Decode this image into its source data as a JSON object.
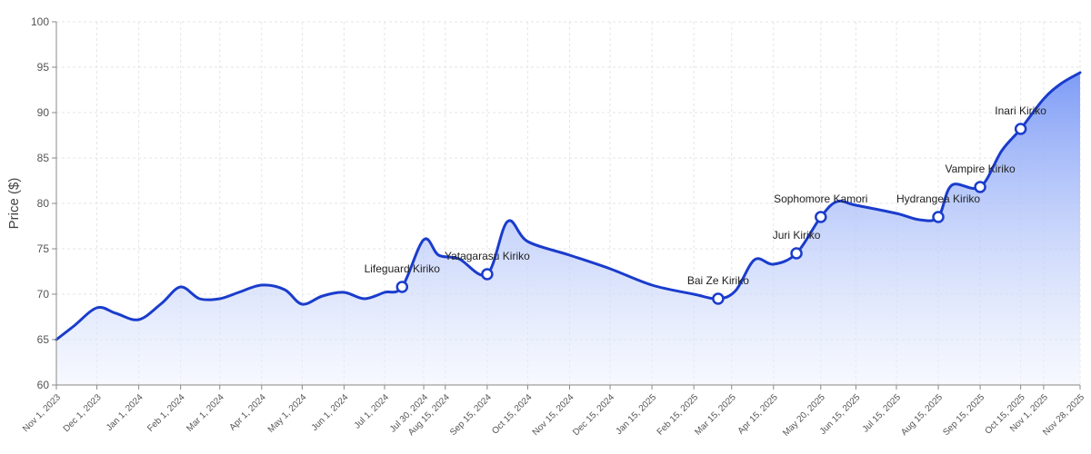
{
  "chart_data": {
    "type": "area",
    "title": "",
    "xlabel": "",
    "ylabel": "Price ($)",
    "ylim": [
      60,
      100
    ],
    "yticks": [
      60,
      65,
      70,
      75,
      80,
      85,
      90,
      95,
      100
    ],
    "grid": true,
    "x_tick_labels": [
      {
        "date": "2023-11-01",
        "label": "Nov 1, 2023"
      },
      {
        "date": "2023-12-01",
        "label": "Dec 1, 2023"
      },
      {
        "date": "2024-01-01",
        "label": "Jan 1, 2024"
      },
      {
        "date": "2024-02-01",
        "label": "Feb 1, 2024"
      },
      {
        "date": "2024-03-01",
        "label": "Mar 1, 2024"
      },
      {
        "date": "2024-04-01",
        "label": "Apr 1, 2024"
      },
      {
        "date": "2024-05-01",
        "label": "May 1, 2024"
      },
      {
        "date": "2024-06-01",
        "label": "Jun 1, 2024"
      },
      {
        "date": "2024-07-01",
        "label": "Jul 1, 2024"
      },
      {
        "date": "2024-07-30",
        "label": "Jul 30, 2024"
      },
      {
        "date": "2024-08-15",
        "label": "Aug 15, 2024"
      },
      {
        "date": "2024-09-15",
        "label": "Sep 15, 2024"
      },
      {
        "date": "2024-10-15",
        "label": "Oct 15, 2024"
      },
      {
        "date": "2024-11-15",
        "label": "Nov 15, 2024"
      },
      {
        "date": "2024-12-15",
        "label": "Dec 15, 2024"
      },
      {
        "date": "2025-01-15",
        "label": "Jan 15, 2025"
      },
      {
        "date": "2025-02-15",
        "label": "Feb 15, 2025"
      },
      {
        "date": "2025-03-15",
        "label": "Mar 15, 2025"
      },
      {
        "date": "2025-04-15",
        "label": "Apr 15, 2025"
      },
      {
        "date": "2025-05-20",
        "label": "May 20, 2025"
      },
      {
        "date": "2025-06-15",
        "label": "Jun 15, 2025"
      },
      {
        "date": "2025-07-15",
        "label": "Jul 15, 2025"
      },
      {
        "date": "2025-08-15",
        "label": "Aug 15, 2025"
      },
      {
        "date": "2025-09-15",
        "label": "Sep 15, 2025"
      },
      {
        "date": "2025-10-15",
        "label": "Oct 15, 2025"
      },
      {
        "date": "2025-11-01",
        "label": "Nov 1, 2025"
      },
      {
        "date": "2025-11-28",
        "label": "Nov 28, 2025"
      }
    ],
    "series": [
      {
        "points": [
          {
            "x": "2023-11-01",
            "y": 65.0
          },
          {
            "x": "2023-11-14",
            "y": 66.5
          },
          {
            "x": "2023-12-01",
            "y": 68.5
          },
          {
            "x": "2023-12-15",
            "y": 67.9
          },
          {
            "x": "2024-01-01",
            "y": 67.2
          },
          {
            "x": "2024-01-18",
            "y": 69.0
          },
          {
            "x": "2024-02-01",
            "y": 70.8
          },
          {
            "x": "2024-02-15",
            "y": 69.5
          },
          {
            "x": "2024-03-01",
            "y": 69.5
          },
          {
            "x": "2024-03-15",
            "y": 70.2
          },
          {
            "x": "2024-04-01",
            "y": 71.0
          },
          {
            "x": "2024-04-18",
            "y": 70.5
          },
          {
            "x": "2024-05-01",
            "y": 68.9
          },
          {
            "x": "2024-05-16",
            "y": 69.8
          },
          {
            "x": "2024-06-01",
            "y": 70.2
          },
          {
            "x": "2024-06-16",
            "y": 69.5
          },
          {
            "x": "2024-07-01",
            "y": 70.2
          },
          {
            "x": "2024-07-14",
            "y": 70.8
          },
          {
            "x": "2024-07-30",
            "y": 76.0
          },
          {
            "x": "2024-08-10",
            "y": 74.3
          },
          {
            "x": "2024-08-25",
            "y": 73.9
          },
          {
            "x": "2024-09-15",
            "y": 72.2
          },
          {
            "x": "2024-09-30",
            "y": 78.0
          },
          {
            "x": "2024-10-15",
            "y": 75.8
          },
          {
            "x": "2024-11-15",
            "y": 74.3
          },
          {
            "x": "2024-12-15",
            "y": 72.8
          },
          {
            "x": "2025-01-15",
            "y": 71.0
          },
          {
            "x": "2025-02-15",
            "y": 70.0
          },
          {
            "x": "2025-03-05",
            "y": 69.5
          },
          {
            "x": "2025-03-18",
            "y": 70.4
          },
          {
            "x": "2025-04-01",
            "y": 73.8
          },
          {
            "x": "2025-04-15",
            "y": 73.3
          },
          {
            "x": "2025-05-02",
            "y": 74.5
          },
          {
            "x": "2025-05-20",
            "y": 78.5
          },
          {
            "x": "2025-06-01",
            "y": 80.2
          },
          {
            "x": "2025-06-15",
            "y": 79.8
          },
          {
            "x": "2025-07-15",
            "y": 78.9
          },
          {
            "x": "2025-08-01",
            "y": 78.2
          },
          {
            "x": "2025-08-15",
            "y": 78.5
          },
          {
            "x": "2025-08-25",
            "y": 82.0
          },
          {
            "x": "2025-09-15",
            "y": 81.8
          },
          {
            "x": "2025-10-01",
            "y": 85.8
          },
          {
            "x": "2025-10-15",
            "y": 88.2
          },
          {
            "x": "2025-11-01",
            "y": 91.5
          },
          {
            "x": "2025-11-14",
            "y": 93.2
          },
          {
            "x": "2025-11-28",
            "y": 94.4
          }
        ]
      }
    ],
    "annotations": [
      {
        "x": "2024-07-14",
        "y": 70.8,
        "label": "Lifeguard Kiriko"
      },
      {
        "x": "2024-09-15",
        "y": 72.2,
        "label": "Yatagarasu Kiriko"
      },
      {
        "x": "2025-03-05",
        "y": 69.5,
        "label": "Bai Ze Kiriko"
      },
      {
        "x": "2025-05-02",
        "y": 74.5,
        "label": "Juri Kiriko"
      },
      {
        "x": "2025-05-20",
        "y": 78.5,
        "label": "Sophomore Kamori"
      },
      {
        "x": "2025-08-15",
        "y": 78.5,
        "label": "Hydrangea Kiriko"
      },
      {
        "x": "2025-09-15",
        "y": 81.8,
        "label": "Vampire Kiriko"
      },
      {
        "x": "2025-10-15",
        "y": 88.2,
        "label": "Inari Kiriko"
      }
    ],
    "colors": {
      "line": "#1a3ccc",
      "fill_top": "#7e9cf6",
      "fill_bottom": "#eef2fd",
      "grid": "#e3e5ea",
      "marker_fill": "#ffffff"
    }
  }
}
